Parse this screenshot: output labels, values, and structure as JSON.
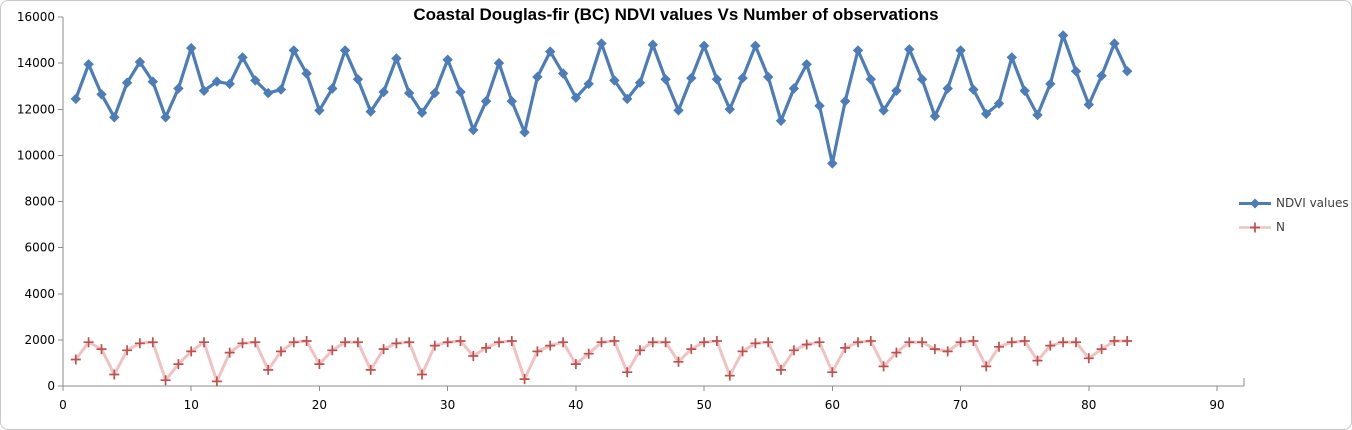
{
  "colors": {
    "ndvi_series": "#4C7DB8",
    "n_marker": "#C0504D",
    "n_line": "#F0C3C2",
    "axis_line": "#8E8E8E",
    "tick_label": "#000000",
    "legend_text": "#3F3F3F",
    "chart_border": "#C9C9C9",
    "background": "#FFFFFF"
  },
  "chart_data": {
    "type": "line",
    "title": "Coastal Douglas-fir (BC) NDVI values Vs Number of observations",
    "xlabel": "",
    "ylabel": "",
    "xlim": [
      0,
      90
    ],
    "ylim": [
      0,
      16000
    ],
    "x_ticks": [
      0,
      10,
      20,
      30,
      40,
      50,
      60,
      70,
      80,
      90
    ],
    "y_ticks": [
      0,
      2000,
      4000,
      6000,
      8000,
      10000,
      12000,
      14000,
      16000
    ],
    "grid": false,
    "legend_position": "right",
    "x": [
      1,
      2,
      3,
      4,
      5,
      6,
      7,
      8,
      9,
      10,
      11,
      12,
      13,
      14,
      15,
      16,
      17,
      18,
      19,
      20,
      21,
      22,
      23,
      24,
      25,
      26,
      27,
      28,
      29,
      30,
      31,
      32,
      33,
      34,
      35,
      36,
      37,
      38,
      39,
      40,
      41,
      42,
      43,
      44,
      45,
      46,
      47,
      48,
      49,
      50,
      51,
      52,
      53,
      54,
      55,
      56,
      57,
      58,
      59,
      60,
      61,
      62,
      63,
      64,
      65,
      66,
      67,
      68,
      69,
      70,
      71,
      72,
      73,
      74,
      75,
      76,
      77,
      78,
      79,
      80,
      81,
      82,
      83
    ],
    "series": [
      {
        "name": "NDVI values",
        "marker": "diamond",
        "color": "#4C7DB8",
        "values": [
          12450,
          13950,
          12650,
          11650,
          13150,
          14050,
          13200,
          11650,
          12900,
          14650,
          12800,
          13200,
          13100,
          14250,
          13250,
          12700,
          12850,
          14550,
          13550,
          11950,
          12900,
          14550,
          13300,
          11900,
          12750,
          14200,
          12700,
          11850,
          12700,
          14150,
          12750,
          11100,
          12350,
          14000,
          12350,
          11000,
          13400,
          14500,
          13550,
          12500,
          13100,
          14850,
          13250,
          12450,
          13150,
          14800,
          13300,
          11950,
          13350,
          14750,
          13300,
          12000,
          13350,
          14750,
          13400,
          11500,
          12900,
          13950,
          12150,
          9650,
          12350,
          14550,
          13300,
          11950,
          12800,
          14600,
          13300,
          11700,
          12900,
          14550,
          12850,
          11800,
          12250,
          14250,
          12800,
          11750,
          13100,
          15200,
          13650,
          12200,
          13450,
          14850,
          13650
        ]
      },
      {
        "name": "N",
        "marker": "plus",
        "marker_color": "#C0504D",
        "line_color": "#F0C3C2",
        "values": [
          1150,
          1900,
          1600,
          500,
          1550,
          1850,
          1900,
          250,
          950,
          1500,
          1900,
          200,
          1450,
          1850,
          1900,
          700,
          1500,
          1900,
          1950,
          950,
          1550,
          1900,
          1900,
          700,
          1600,
          1850,
          1900,
          500,
          1750,
          1900,
          1950,
          1300,
          1650,
          1900,
          1950,
          300,
          1500,
          1750,
          1900,
          950,
          1400,
          1900,
          1950,
          600,
          1550,
          1900,
          1900,
          1050,
          1600,
          1900,
          1950,
          450,
          1500,
          1850,
          1900,
          700,
          1550,
          1800,
          1900,
          600,
          1650,
          1900,
          1950,
          850,
          1450,
          1900,
          1900,
          1600,
          1500,
          1900,
          1950,
          850,
          1700,
          1900,
          1950,
          1100,
          1750,
          1900,
          1900,
          1200,
          1600,
          1950,
          1950
        ]
      }
    ]
  }
}
